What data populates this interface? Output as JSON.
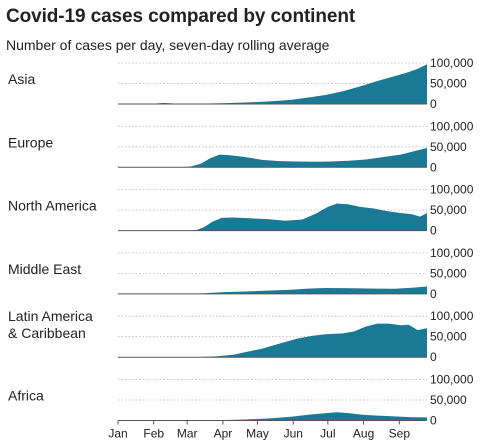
{
  "title": "Covid-19 cases compared by continent",
  "subtitle": "Number of cases per day, seven-day rolling average",
  "chart_data": {
    "type": "area",
    "layout": "small-multiples",
    "x_unit": "days since 1 Jan 2020",
    "x_range": [
      0,
      268
    ],
    "y_range": [
      0,
      100000
    ],
    "y_ticks": [
      0,
      50000,
      100000
    ],
    "y_tick_labels": [
      "0",
      "50,000",
      "100,000"
    ],
    "x_ticks": [
      {
        "label": "Jan",
        "x": 0
      },
      {
        "label": "Feb",
        "x": 31
      },
      {
        "label": "Mar",
        "x": 60
      },
      {
        "label": "Apr",
        "x": 91
      },
      {
        "label": "May",
        "x": 121
      },
      {
        "label": "Jun",
        "x": 152
      },
      {
        "label": "Jul",
        "x": 182
      },
      {
        "label": "Aug",
        "x": 213
      },
      {
        "label": "Sep",
        "x": 244
      }
    ],
    "grid": "horizontal dotted",
    "legend": "none",
    "series_color": "#1a7a96",
    "series": [
      {
        "name": "Asia",
        "label_lines": [
          "Asia"
        ],
        "points": [
          [
            0,
            0
          ],
          [
            20,
            0
          ],
          [
            30,
            600
          ],
          [
            40,
            2800
          ],
          [
            47,
            1400
          ],
          [
            55,
            300
          ],
          [
            70,
            900
          ],
          [
            90,
            1700
          ],
          [
            110,
            3500
          ],
          [
            130,
            6000
          ],
          [
            150,
            10000
          ],
          [
            165,
            16000
          ],
          [
            180,
            22000
          ],
          [
            195,
            31000
          ],
          [
            210,
            43000
          ],
          [
            225,
            56000
          ],
          [
            240,
            68000
          ],
          [
            250,
            76000
          ],
          [
            260,
            86000
          ],
          [
            268,
            97000
          ]
        ]
      },
      {
        "name": "Europe",
        "label_lines": [
          "Europe"
        ],
        "points": [
          [
            0,
            0
          ],
          [
            50,
            0
          ],
          [
            62,
            1200
          ],
          [
            72,
            9000
          ],
          [
            80,
            22000
          ],
          [
            88,
            31000
          ],
          [
            95,
            30000
          ],
          [
            105,
            27000
          ],
          [
            115,
            23000
          ],
          [
            125,
            18000
          ],
          [
            140,
            15000
          ],
          [
            155,
            14000
          ],
          [
            170,
            13500
          ],
          [
            185,
            14000
          ],
          [
            200,
            16000
          ],
          [
            215,
            19000
          ],
          [
            230,
            25000
          ],
          [
            245,
            31000
          ],
          [
            258,
            40000
          ],
          [
            268,
            47000
          ]
        ]
      },
      {
        "name": "North America",
        "label_lines": [
          "North America"
        ],
        "points": [
          [
            0,
            0
          ],
          [
            60,
            0
          ],
          [
            68,
            1200
          ],
          [
            75,
            9000
          ],
          [
            82,
            22000
          ],
          [
            90,
            31000
          ],
          [
            100,
            32000
          ],
          [
            115,
            30000
          ],
          [
            130,
            28000
          ],
          [
            145,
            24000
          ],
          [
            160,
            27000
          ],
          [
            172,
            42000
          ],
          [
            182,
            58000
          ],
          [
            190,
            66000
          ],
          [
            200,
            64000
          ],
          [
            210,
            58000
          ],
          [
            222,
            54000
          ],
          [
            232,
            48000
          ],
          [
            245,
            43000
          ],
          [
            255,
            40000
          ],
          [
            262,
            34000
          ],
          [
            268,
            43000
          ]
        ]
      },
      {
        "name": "Middle East",
        "label_lines": [
          "Middle East"
        ],
        "points": [
          [
            0,
            0
          ],
          [
            55,
            0
          ],
          [
            70,
            500
          ],
          [
            80,
            2500
          ],
          [
            95,
            4500
          ],
          [
            110,
            6000
          ],
          [
            130,
            8000
          ],
          [
            150,
            10000
          ],
          [
            165,
            13000
          ],
          [
            180,
            14500
          ],
          [
            195,
            14000
          ],
          [
            210,
            13500
          ],
          [
            225,
            13000
          ],
          [
            240,
            12500
          ],
          [
            255,
            15000
          ],
          [
            268,
            18000
          ]
        ]
      },
      {
        "name": "Latin America & Caribbean",
        "label_lines": [
          "Latin America",
          "& Caribbean"
        ],
        "points": [
          [
            0,
            0
          ],
          [
            55,
            0
          ],
          [
            70,
            300
          ],
          [
            85,
            2000
          ],
          [
            100,
            6000
          ],
          [
            110,
            12000
          ],
          [
            125,
            21000
          ],
          [
            140,
            33000
          ],
          [
            155,
            45000
          ],
          [
            168,
            52000
          ],
          [
            180,
            56000
          ],
          [
            195,
            58000
          ],
          [
            205,
            63000
          ],
          [
            215,
            75000
          ],
          [
            225,
            82000
          ],
          [
            235,
            82000
          ],
          [
            245,
            78000
          ],
          [
            252,
            79000
          ],
          [
            260,
            66000
          ],
          [
            268,
            71000
          ]
        ]
      },
      {
        "name": "Africa",
        "label_lines": [
          "Africa"
        ],
        "points": [
          [
            0,
            0
          ],
          [
            60,
            0
          ],
          [
            75,
            300
          ],
          [
            90,
            1000
          ],
          [
            110,
            2500
          ],
          [
            130,
            5000
          ],
          [
            150,
            9000
          ],
          [
            165,
            14000
          ],
          [
            180,
            18000
          ],
          [
            190,
            20000
          ],
          [
            200,
            18000
          ],
          [
            212,
            14000
          ],
          [
            225,
            12000
          ],
          [
            240,
            10000
          ],
          [
            255,
            8000
          ],
          [
            268,
            7500
          ]
        ]
      }
    ]
  }
}
